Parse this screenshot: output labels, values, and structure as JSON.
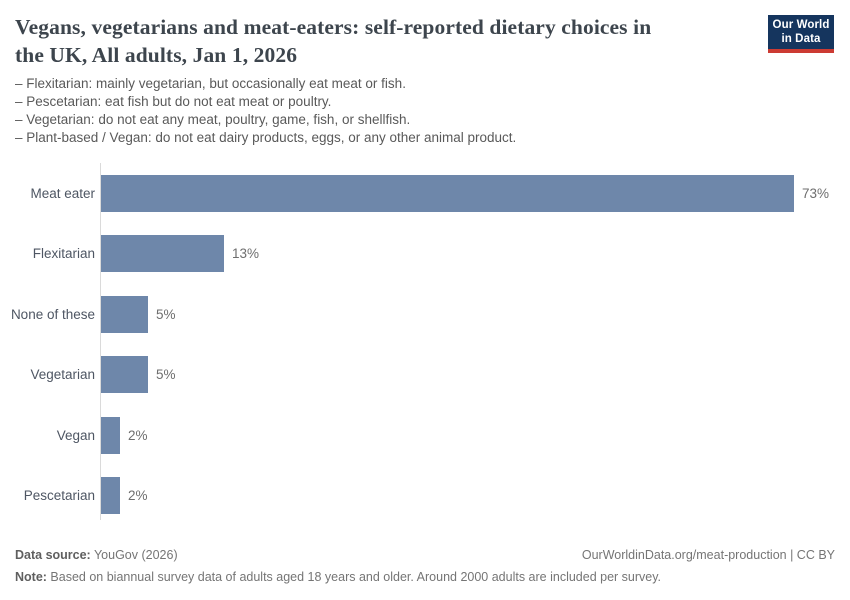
{
  "header": {
    "title_line1": "Vegans, vegetarians and meat-eaters: self-reported dietary choices in",
    "title_line2": "the UK, All adults, Jan 1, 2026",
    "logo": {
      "line1": "Our World",
      "line2": "in Data"
    }
  },
  "subtitle_lines": [
    "– Flexitarian: mainly vegetarian, but occasionally eat meat or fish.",
    "– Pescetarian: eat fish but do not eat meat or poultry.",
    "– Vegetarian: do not eat any meat, poultry, game, fish, or shellfish.",
    "– Plant-based / Vegan: do not eat dairy products, eggs, or any other animal product."
  ],
  "chart_data": {
    "type": "bar",
    "orientation": "horizontal",
    "title": "Vegans, vegetarians and meat-eaters: self-reported dietary choices in the UK, All adults, Jan 1, 2026",
    "categories": [
      "Meat eater",
      "Flexitarian",
      "None of these",
      "Vegetarian",
      "Vegan",
      "Pescetarian"
    ],
    "values": [
      73,
      13,
      5,
      5,
      2,
      2
    ],
    "value_labels": [
      "73%",
      "13%",
      "5%",
      "5%",
      "2%",
      "2%"
    ],
    "unit": "%",
    "xlim": [
      0,
      73
    ],
    "grid": false,
    "bar_color": "#6e87aa",
    "axis_line_color": "#dadada"
  },
  "footer": {
    "data_source_label": "Data source:",
    "data_source_value": " YouGov (2026)",
    "link": "OurWorldinData.org/meat-production | CC BY",
    "note_label": "Note:",
    "note_value": " Based on biannual survey data of adults aged 18 years and older. Around 2000 adults are included per survey."
  },
  "colors": {
    "title": "#3d454d",
    "subtitle": "#595959",
    "category_label": "#4e5663",
    "value_label": "#6e6e6e",
    "bar": "#6e87aa",
    "logo_navy": "#15355e",
    "logo_red": "#cc3b33",
    "footer_text": "#757575"
  }
}
